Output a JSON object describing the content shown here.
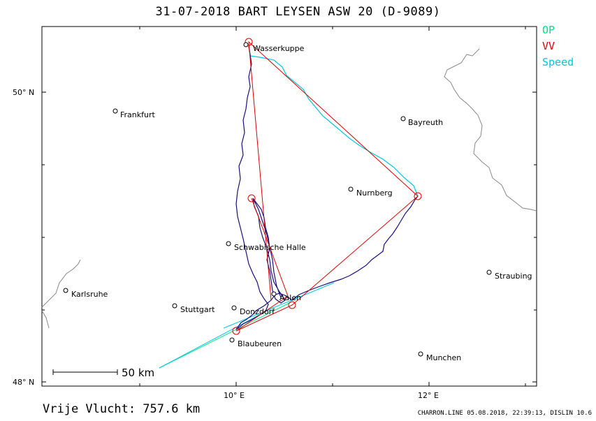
{
  "title": "31-07-2018   BART LEYSEN   ASW 20 (D-9089)",
  "legend": [
    {
      "label": "OP",
      "color": "#00e08a"
    },
    {
      "label": "VV",
      "color": "#e00000"
    },
    {
      "label": "Speed",
      "color": "#00c8e0"
    }
  ],
  "axes": {
    "lat_labels": [
      "50° N",
      "48° N"
    ],
    "lon_labels": [
      "10° E",
      "12° E"
    ]
  },
  "towns": [
    {
      "name": "Wasserkuppe"
    },
    {
      "name": "Frankfurt"
    },
    {
      "name": "Bayreuth"
    },
    {
      "name": "Nurnberg"
    },
    {
      "name": "Schwabische Halle"
    },
    {
      "name": "Karlsruhe"
    },
    {
      "name": "Stuttgart"
    },
    {
      "name": "Donzdorf"
    },
    {
      "name": "Aalen"
    },
    {
      "name": "Blaubeuren"
    },
    {
      "name": "Straubing"
    },
    {
      "name": "Munchen"
    }
  ],
  "scale_label": "50  km",
  "free_flight": "Vrije Vlucht:  757.6 km",
  "footer": "CHARRON.LINE 05.08.2018, 22:39:13, DISLIN 10.6",
  "colors": {
    "track": "#1a1080",
    "task": "#e00000",
    "op": "#00e08a",
    "speed": "#00c8e0",
    "border": "#888888"
  }
}
